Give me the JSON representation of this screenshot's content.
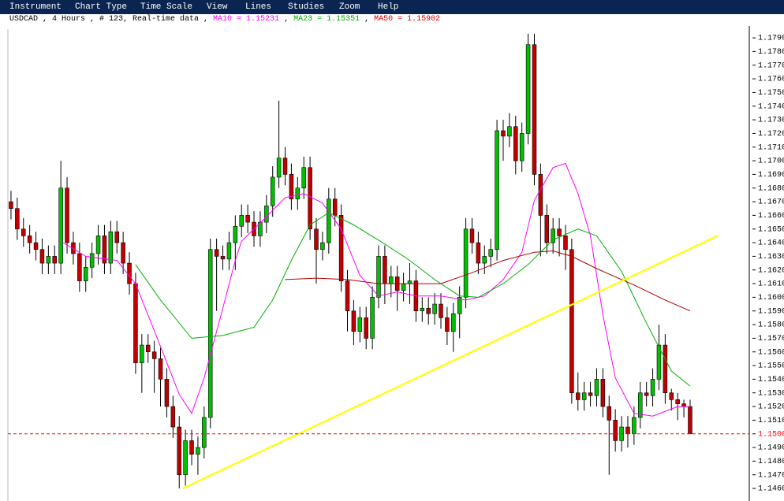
{
  "menu": [
    "Instrument",
    "Chart Type",
    "Time Scale",
    "View",
    "Lines",
    "Studies",
    "Zoom",
    "Help"
  ],
  "header": {
    "parts": [
      {
        "text": "USDCAD , 4 Hours , # 123, Real-time data , ",
        "color": "#000000"
      },
      {
        "text": "MA10 = 1.15231",
        "color": "#ff00ff"
      },
      {
        "text": " , ",
        "color": "#000000"
      },
      {
        "text": "MA23 = 1.15351",
        "color": "#00b000"
      },
      {
        "text": " , ",
        "color": "#000000"
      },
      {
        "text": "MA50 = 1.15902",
        "color": "#e00000"
      }
    ]
  },
  "chart_data": {
    "type": "candlestick",
    "up_color": "#00c000",
    "down_color": "#c00000",
    "xlim": [
      -0.5,
      118.5
    ],
    "ylim": [
      1.14508,
      1.17987
    ],
    "open": [
      1.167,
      1.1665,
      1.165,
      1.1645,
      1.164,
      1.1635,
      1.1625,
      1.163,
      1.1625,
      1.168,
      1.164,
      1.1632,
      1.1612,
      1.1622,
      1.1632,
      1.1645,
      1.1625,
      1.1648,
      1.164,
      1.1625,
      1.161,
      1.1552,
      1.1565,
      1.156,
      1.1555,
      1.154,
      1.152,
      1.1505,
      1.147,
      1.1495,
      1.1485,
      1.149,
      1.1512,
      1.1635,
      1.163,
      1.1628,
      1.164,
      1.1652,
      1.166,
      1.1655,
      1.1645,
      1.1655,
      1.1667,
      1.1688,
      1.1702,
      1.169,
      1.1672,
      1.168,
      1.1695,
      1.165,
      1.1635,
      1.164,
      1.1672,
      1.166,
      1.1612,
      1.159,
      1.1575,
      1.1585,
      1.157,
      1.16,
      1.163,
      1.161,
      1.1615,
      1.1605,
      1.161,
      1.1612,
      1.159,
      1.1592,
      1.1588,
      1.1595,
      1.1585,
      1.1575,
      1.1588,
      1.16,
      1.165,
      1.164,
      1.1625,
      1.163,
      1.1635,
      1.1722,
      1.1718,
      1.1725,
      1.17,
      1.172,
      1.1785,
      1.169,
      1.166,
      1.164,
      1.165,
      1.1645,
      1.1635,
      1.153,
      1.1525,
      1.153,
      1.1528,
      1.154,
      1.152,
      1.151,
      1.1495,
      1.1505,
      1.15,
      1.1512,
      1.153,
      1.1528,
      1.154,
      1.1565,
      1.153,
      1.1525,
      1.1522,
      1.152
    ],
    "high": [
      1.1678,
      1.1673,
      1.1658,
      1.1653,
      1.1648,
      1.1643,
      1.1638,
      1.1638,
      1.17,
      1.1688,
      1.1648,
      1.164,
      1.163,
      1.164,
      1.1653,
      1.1653,
      1.1656,
      1.1656,
      1.1648,
      1.1633,
      1.1618,
      1.1573,
      1.1573,
      1.1568,
      1.1563,
      1.1548,
      1.1528,
      1.1513,
      1.1503,
      1.1503,
      1.1498,
      1.152,
      1.1643,
      1.1643,
      1.1638,
      1.1648,
      1.166,
      1.1668,
      1.1668,
      1.1663,
      1.1663,
      1.1675,
      1.1696,
      1.1744,
      1.171,
      1.1698,
      1.1688,
      1.1703,
      1.1703,
      1.1658,
      1.1648,
      1.168,
      1.168,
      1.1668,
      1.162,
      1.1598,
      1.1593,
      1.1593,
      1.1608,
      1.1638,
      1.1638,
      1.1623,
      1.1623,
      1.1618,
      1.1625,
      1.162,
      1.16,
      1.16,
      1.1603,
      1.1603,
      1.1593,
      1.1596,
      1.1608,
      1.1658,
      1.1658,
      1.1648,
      1.1638,
      1.1643,
      1.173,
      1.173,
      1.1735,
      1.1733,
      1.1728,
      1.1793,
      1.1793,
      1.1698,
      1.1668,
      1.1658,
      1.1658,
      1.1653,
      1.1643,
      1.1545,
      1.1538,
      1.1538,
      1.1548,
      1.1548,
      1.1528,
      1.1518,
      1.1513,
      1.1513,
      1.152,
      1.1538,
      1.1538,
      1.1548,
      1.158,
      1.1573,
      1.1533,
      1.153,
      1.1525,
      1.1525
    ],
    "low": [
      1.1657,
      1.1642,
      1.1637,
      1.1632,
      1.1627,
      1.1617,
      1.1617,
      1.1617,
      1.1617,
      1.1632,
      1.1624,
      1.1604,
      1.1604,
      1.1614,
      1.1624,
      1.1617,
      1.1617,
      1.1632,
      1.1617,
      1.1602,
      1.1544,
      1.153,
      1.1552,
      1.153,
      1.152,
      1.1512,
      1.1497,
      1.146,
      1.1462,
      1.1477,
      1.147,
      1.1482,
      1.1504,
      1.159,
      1.162,
      1.162,
      1.162,
      1.1644,
      1.1647,
      1.1637,
      1.1637,
      1.1647,
      1.1659,
      1.168,
      1.1682,
      1.1664,
      1.1664,
      1.1672,
      1.1642,
      1.161,
      1.1627,
      1.1632,
      1.1652,
      1.1604,
      1.1575,
      1.1565,
      1.1567,
      1.1562,
      1.1562,
      1.1592,
      1.1595,
      1.16,
      1.159,
      1.1597,
      1.1595,
      1.1582,
      1.1582,
      1.158,
      1.158,
      1.1577,
      1.1565,
      1.156,
      1.157,
      1.1592,
      1.1632,
      1.1617,
      1.1617,
      1.1622,
      1.1627,
      1.17,
      1.171,
      1.169,
      1.1692,
      1.1712,
      1.1682,
      1.163,
      1.1632,
      1.1632,
      1.163,
      1.162,
      1.1522,
      1.1517,
      1.1517,
      1.152,
      1.152,
      1.1512,
      1.147,
      1.1487,
      1.1487,
      1.149,
      1.1492,
      1.1504,
      1.152,
      1.152,
      1.1532,
      1.1522,
      1.1517,
      1.151,
      1.1512,
      1.15
    ],
    "close": [
      1.1665,
      1.165,
      1.1645,
      1.164,
      1.1635,
      1.1625,
      1.163,
      1.1625,
      1.168,
      1.164,
      1.1632,
      1.1612,
      1.1622,
      1.1632,
      1.1645,
      1.1625,
      1.1648,
      1.164,
      1.1625,
      1.161,
      1.1552,
      1.1565,
      1.156,
      1.1555,
      1.154,
      1.152,
      1.1505,
      1.147,
      1.1495,
      1.1485,
      1.149,
      1.1512,
      1.1635,
      1.163,
      1.1628,
      1.164,
      1.1652,
      1.166,
      1.1655,
      1.1645,
      1.1655,
      1.1667,
      1.1688,
      1.1702,
      1.169,
      1.1672,
      1.168,
      1.1695,
      1.165,
      1.1635,
      1.164,
      1.1672,
      1.166,
      1.1612,
      1.159,
      1.1575,
      1.1585,
      1.157,
      1.16,
      1.163,
      1.161,
      1.1615,
      1.1605,
      1.161,
      1.1612,
      1.159,
      1.1592,
      1.1588,
      1.1595,
      1.1585,
      1.1575,
      1.1588,
      1.16,
      1.165,
      1.164,
      1.1625,
      1.163,
      1.1635,
      1.1722,
      1.1718,
      1.1725,
      1.17,
      1.172,
      1.1785,
      1.169,
      1.166,
      1.164,
      1.165,
      1.1645,
      1.1635,
      1.153,
      1.1525,
      1.153,
      1.1528,
      1.154,
      1.152,
      1.151,
      1.1495,
      1.1505,
      1.15,
      1.1512,
      1.153,
      1.1528,
      1.154,
      1.1565,
      1.153,
      1.1525,
      1.1522,
      1.152,
      1.15
    ],
    "moving_averages": [
      {
        "color": "#ff00ff",
        "x": [
          8,
          12,
          17,
          20,
          24,
          27,
          29,
          31,
          34,
          36,
          37,
          41,
          44,
          47,
          50,
          53,
          56,
          59,
          62,
          65,
          69,
          73,
          76,
          79,
          82,
          84,
          87,
          89,
          91,
          93,
          95,
          97,
          100,
          103,
          107,
          109
        ],
        "values": [
          1.1641,
          1.163,
          1.1627,
          1.161,
          1.1564,
          1.1529,
          1.1515,
          1.1541,
          1.1592,
          1.1627,
          1.1641,
          1.1659,
          1.1673,
          1.1676,
          1.1669,
          1.165,
          1.1616,
          1.1601,
          1.1604,
          1.1601,
          1.1601,
          1.1598,
          1.1601,
          1.1613,
          1.1633,
          1.1671,
          1.1695,
          1.1698,
          1.1676,
          1.1645,
          1.1587,
          1.1541,
          1.1515,
          1.1513,
          1.152,
          1.152
        ]
      },
      {
        "color": "#00b000",
        "x": [
          20,
          24,
          29,
          34,
          39,
          42,
          45,
          48,
          51,
          55,
          60,
          64,
          68,
          72,
          75,
          79,
          83,
          87,
          91,
          94,
          98,
          102,
          106,
          109
        ],
        "values": [
          1.1624,
          1.1598,
          1.157,
          1.1572,
          1.1578,
          1.1598,
          1.1627,
          1.1653,
          1.1662,
          1.1653,
          1.1639,
          1.1627,
          1.1613,
          1.1601,
          1.16,
          1.161,
          1.1624,
          1.1642,
          1.165,
          1.1645,
          1.1619,
          1.1581,
          1.1546,
          1.1535
        ]
      },
      {
        "color": "#b00000",
        "x": [
          44,
          49,
          54,
          59,
          64,
          69,
          74,
          79,
          84,
          87,
          90,
          94,
          100,
          105,
          109
        ],
        "values": [
          1.1613,
          1.1614,
          1.1613,
          1.161,
          1.161,
          1.161,
          1.1618,
          1.1627,
          1.1633,
          1.1634,
          1.163,
          1.1621,
          1.1609,
          1.1598,
          1.159
        ]
      }
    ],
    "trendline": {
      "color": "#ffff00",
      "x": [
        27.6,
        113.4
      ],
      "values": [
        1.146,
        1.1645
      ]
    },
    "current_price": {
      "value": 1.15,
      "label": "1.1500",
      "color": "#ff0000"
    },
    "yticks": [
      {
        "value": 1.146,
        "label": "1.1460"
      },
      {
        "value": 1.147,
        "label": "1.1470"
      },
      {
        "value": 1.148,
        "label": "1.1480"
      },
      {
        "value": 1.149,
        "label": "1.1490"
      },
      {
        "value": 1.15,
        "label": "1.1500"
      },
      {
        "value": 1.151,
        "label": "1.1510"
      },
      {
        "value": 1.152,
        "label": "1.1520"
      },
      {
        "value": 1.153,
        "label": "1.1530"
      },
      {
        "value": 1.154,
        "label": "1.1540"
      },
      {
        "value": 1.155,
        "label": "1.1550"
      },
      {
        "value": 1.156,
        "label": "1.1560"
      },
      {
        "value": 1.157,
        "label": "1.1570"
      },
      {
        "value": 1.158,
        "label": "1.1580"
      },
      {
        "value": 1.159,
        "label": "1.1590"
      },
      {
        "value": 1.16,
        "label": "1.1600"
      },
      {
        "value": 1.161,
        "label": "1.1610"
      },
      {
        "value": 1.162,
        "label": "1.1620"
      },
      {
        "value": 1.163,
        "label": "1.1630"
      },
      {
        "value": 1.164,
        "label": "1.1640"
      },
      {
        "value": 1.165,
        "label": "1.1650"
      },
      {
        "value": 1.166,
        "label": "1.1660"
      },
      {
        "value": 1.167,
        "label": "1.1670"
      },
      {
        "value": 1.168,
        "label": "1.1680"
      },
      {
        "value": 1.169,
        "label": "1.1690"
      },
      {
        "value": 1.17,
        "label": "1.1700"
      },
      {
        "value": 1.171,
        "label": "1.1710"
      },
      {
        "value": 1.172,
        "label": "1.1720"
      },
      {
        "value": 1.173,
        "label": "1.1730"
      },
      {
        "value": 1.174,
        "label": "1.1740"
      },
      {
        "value": 1.175,
        "label": "1.1750"
      },
      {
        "value": 1.176,
        "label": "1.1760"
      },
      {
        "value": 1.177,
        "label": "1.1770"
      },
      {
        "value": 1.178,
        "label": "1.1780"
      },
      {
        "value": 1.179,
        "label": "1.1790"
      }
    ]
  }
}
